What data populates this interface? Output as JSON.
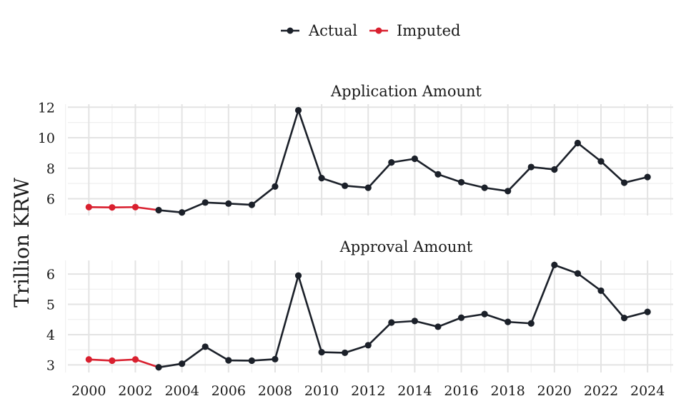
{
  "chart_data": {
    "type": "line",
    "ylabel": "Trillion KRW",
    "legend": {
      "position": "top",
      "entries": [
        {
          "label": "Actual",
          "color": "#1b2029"
        },
        {
          "label": "Imputed",
          "color": "#d9202f"
        }
      ]
    },
    "grid": true,
    "x_ticks": [
      "2000",
      "2002",
      "2004",
      "2006",
      "2008",
      "2010",
      "2012",
      "2014",
      "2016",
      "2018",
      "2020",
      "2022",
      "2024"
    ],
    "panels": [
      {
        "title": "Application Amount",
        "ylim": [
          4.9,
          12.2
        ],
        "y_ticks": [
          "6",
          "8",
          "10",
          "12"
        ],
        "x": [
          2000,
          2001,
          2002,
          2003,
          2004,
          2005,
          2006,
          2007,
          2008,
          2009,
          2010,
          2011,
          2012,
          2013,
          2014,
          2015,
          2016,
          2017,
          2018,
          2019,
          2020,
          2021,
          2022,
          2023,
          2024
        ],
        "values": [
          5.45,
          5.43,
          5.45,
          5.25,
          5.1,
          5.75,
          5.68,
          5.6,
          6.8,
          11.8,
          7.35,
          6.85,
          6.72,
          8.38,
          8.62,
          7.6,
          7.08,
          6.72,
          6.5,
          8.08,
          7.92,
          9.65,
          8.45,
          7.05,
          7.42
        ],
        "imputed": [
          true,
          true,
          true,
          false,
          false,
          false,
          false,
          false,
          false,
          false,
          false,
          false,
          false,
          false,
          false,
          false,
          false,
          false,
          false,
          false,
          false,
          false,
          false,
          false,
          false
        ]
      },
      {
        "title": "Approval Amount",
        "ylim": [
          2.75,
          6.45
        ],
        "y_ticks": [
          "3",
          "4",
          "5",
          "6"
        ],
        "x": [
          2000,
          2001,
          2002,
          2003,
          2004,
          2005,
          2006,
          2007,
          2008,
          2009,
          2010,
          2011,
          2012,
          2013,
          2014,
          2015,
          2016,
          2017,
          2018,
          2019,
          2020,
          2021,
          2022,
          2023,
          2024
        ],
        "values": [
          3.18,
          3.14,
          3.18,
          2.92,
          3.04,
          3.6,
          3.15,
          3.14,
          3.19,
          5.95,
          3.42,
          3.4,
          3.65,
          4.4,
          4.45,
          4.26,
          4.56,
          4.68,
          4.42,
          4.37,
          6.3,
          6.02,
          5.45,
          4.55,
          4.75
        ],
        "imputed": [
          true,
          true,
          true,
          false,
          false,
          false,
          false,
          false,
          false,
          false,
          false,
          false,
          false,
          false,
          false,
          false,
          false,
          false,
          false,
          false,
          false,
          false,
          false,
          false,
          false
        ]
      }
    ]
  }
}
